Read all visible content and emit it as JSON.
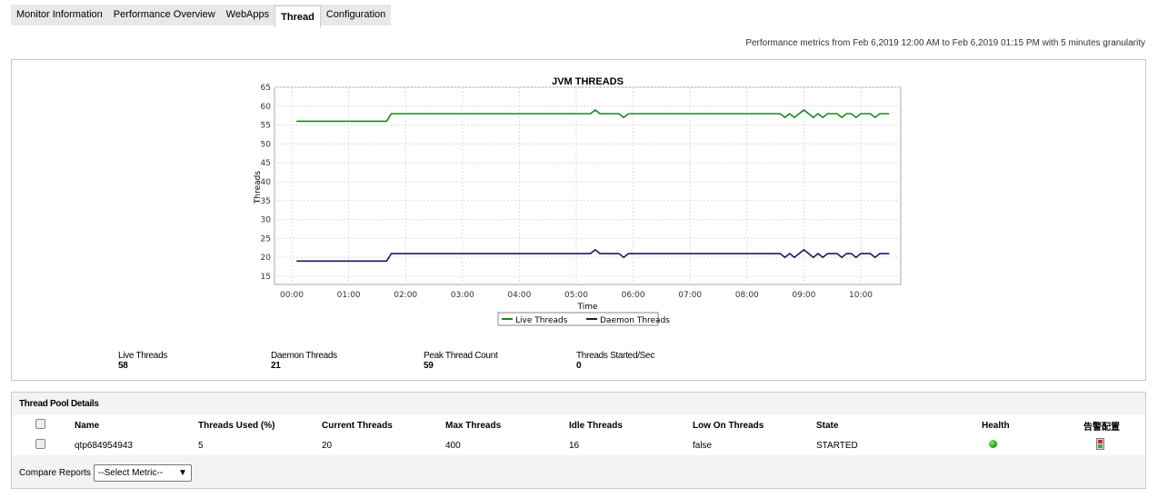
{
  "tabs": [
    {
      "label": "Monitor Information"
    },
    {
      "label": "Performance Overview"
    },
    {
      "label": "WebApps"
    },
    {
      "label": "Thread",
      "active": true
    },
    {
      "label": "Configuration"
    }
  ],
  "range_text": "Performance metrics from Feb 6,2019 12:00 AM to Feb 6,2019 01:15 PM with 5 minutes granularity",
  "chart_data": {
    "type": "line",
    "title": "JVM THREADS",
    "xlabel": "Time",
    "ylabel": "Threads",
    "ylim": [
      15,
      65
    ],
    "yticks": [
      15,
      20,
      25,
      30,
      35,
      40,
      45,
      50,
      55,
      60,
      65
    ],
    "xlim": [
      "00:00",
      "10:30"
    ],
    "xticks": [
      "00:00",
      "01:00",
      "02:00",
      "03:00",
      "04:00",
      "05:00",
      "06:00",
      "07:00",
      "08:00",
      "09:00",
      "10:00"
    ],
    "grid": true,
    "legend": "bottom",
    "x": [
      "00:05",
      "01:40",
      "01:45",
      "05:15",
      "05:20",
      "05:25",
      "05:45",
      "05:50",
      "05:55",
      "08:35",
      "08:40",
      "08:45",
      "08:50",
      "08:55",
      "09:00",
      "09:05",
      "09:10",
      "09:15",
      "09:20",
      "09:25",
      "09:35",
      "09:40",
      "09:45",
      "09:50",
      "09:55",
      "10:00",
      "10:10",
      "10:15",
      "10:20",
      "10:30"
    ],
    "series": [
      {
        "name": "Live Threads",
        "color": "#1a8a1a",
        "values": [
          56,
          56,
          58,
          58,
          59,
          58,
          58,
          57,
          58,
          58,
          57,
          58,
          57,
          58,
          59,
          58,
          57,
          58,
          57,
          58,
          58,
          57,
          58,
          58,
          57,
          58,
          58,
          57,
          58,
          58
        ]
      },
      {
        "name": "Daemon Threads",
        "color": "#1a1a5a",
        "values": [
          19,
          19,
          21,
          21,
          22,
          21,
          21,
          20,
          21,
          21,
          20,
          21,
          20,
          21,
          22,
          21,
          20,
          21,
          20,
          21,
          21,
          20,
          21,
          21,
          20,
          21,
          21,
          20,
          21,
          21
        ]
      }
    ]
  },
  "stats": [
    {
      "label": "Live Threads",
      "value": "58"
    },
    {
      "label": "Daemon Threads",
      "value": "21"
    },
    {
      "label": "Peak Thread Count",
      "value": "59"
    },
    {
      "label": "Threads Started/Sec",
      "value": "0"
    }
  ],
  "pool": {
    "title": "Thread Pool Details",
    "headers": [
      "Name",
      "Threads Used  (%)",
      "Current Threads",
      "Max Threads",
      "Idle Threads",
      "Low On Threads",
      "State",
      "Health",
      "告警配置"
    ],
    "rows": [
      {
        "name": "qtp684954943",
        "used": "5",
        "current": "20",
        "max": "400",
        "idle": "16",
        "low": "false",
        "state": "STARTED",
        "health": "green"
      }
    ],
    "compare_label": "Compare Reports",
    "select_value": "--Select Metric--"
  }
}
